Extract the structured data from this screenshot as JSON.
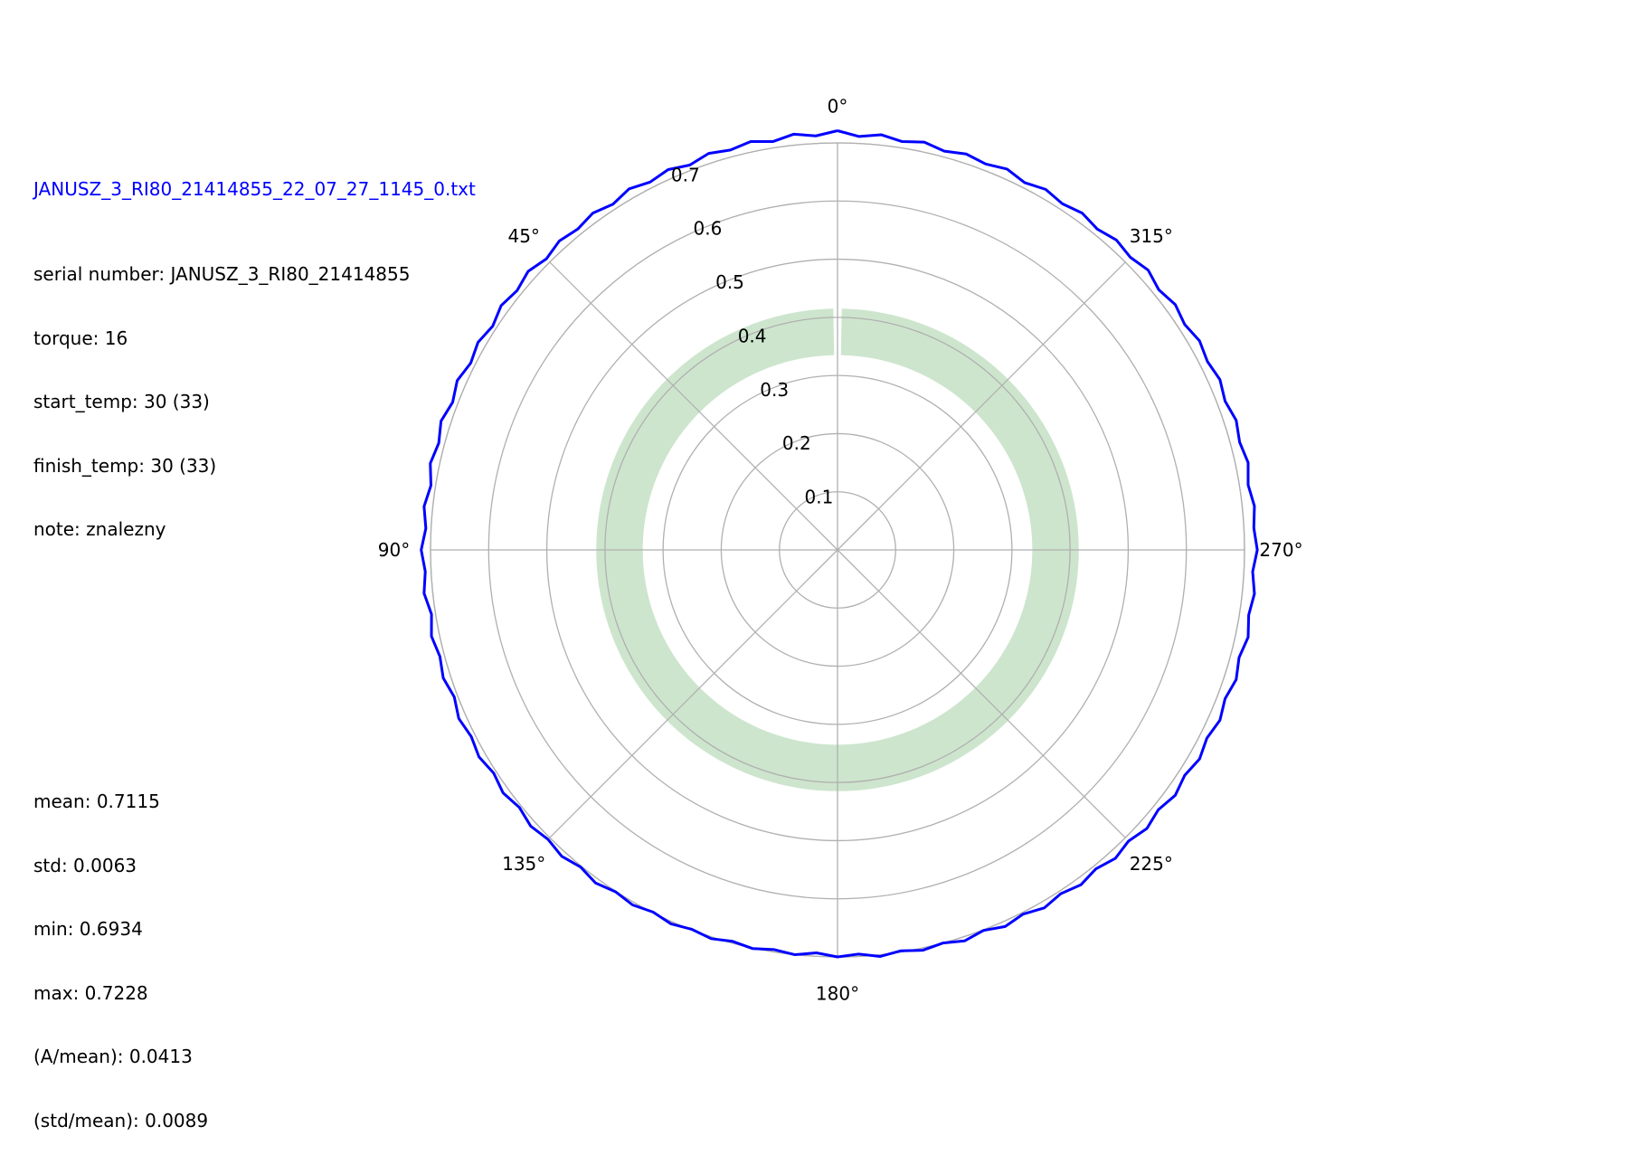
{
  "header": {
    "filename": "JANUSZ_3_RI80_21414855_22_07_27_1145_0.txt",
    "meta_lines": [
      "serial number: JANUSZ_3_RI80_21414855",
      "torque: 16",
      "start_temp: 30 (33)",
      "finish_temp: 30 (33)",
      "note: znalezny"
    ]
  },
  "stats": {
    "lines": [
      "mean: 0.7115",
      "std: 0.0063",
      "min: 0.6934",
      "max: 0.7228",
      "(A/mean): 0.0413",
      "(std/mean): 0.0089"
    ]
  },
  "chart_data": {
    "type": "line",
    "projection": "polar",
    "theta_direction": "counterclockwise",
    "theta_zero": "top",
    "angle_tick_labels": [
      "0°",
      "45°",
      "90°",
      "135°",
      "180°",
      "225°",
      "270°",
      "315°"
    ],
    "angle_ticks_deg": [
      0,
      45,
      90,
      135,
      180,
      225,
      270,
      315
    ],
    "radial_tick_labels": [
      "0.1",
      "0.2",
      "0.3",
      "0.4",
      "0.5",
      "0.6",
      "0.7"
    ],
    "radial_ticks": [
      0.1,
      0.2,
      0.3,
      0.4,
      0.5,
      0.6,
      0.7
    ],
    "rlim": [
      0,
      0.7
    ],
    "grid": true,
    "band": {
      "r_inner": 0.335,
      "r_outer": 0.415,
      "start_deg": 1,
      "end_deg": 359,
      "color": "#cde5cd"
    },
    "series_color": "#0000ff",
    "series": [
      {
        "theta_deg": [
          0,
          3,
          6,
          9,
          12,
          15,
          18,
          21,
          24,
          27,
          30,
          33,
          36,
          39,
          42,
          45,
          48,
          51,
          54,
          57,
          60,
          63,
          66,
          69,
          72,
          75,
          78,
          81,
          84,
          87,
          90,
          93,
          96,
          99,
          102,
          105,
          108,
          111,
          114,
          117,
          120,
          123,
          126,
          129,
          132,
          135,
          138,
          141,
          144,
          147,
          150,
          153,
          156,
          159,
          162,
          165,
          168,
          171,
          174,
          177,
          180,
          183,
          186,
          189,
          192,
          195,
          198,
          201,
          204,
          207,
          210,
          213,
          216,
          219,
          222,
          225,
          228,
          231,
          234,
          237,
          240,
          243,
          246,
          249,
          252,
          255,
          258,
          261,
          264,
          267,
          270,
          273,
          276,
          279,
          282,
          285,
          288,
          291,
          294,
          297,
          300,
          303,
          306,
          309,
          312,
          315,
          318,
          321,
          324,
          327,
          330,
          333,
          336,
          339,
          342,
          345,
          348,
          351,
          354,
          357,
          360
        ],
        "r": [
          0.721,
          0.713,
          0.719,
          0.711,
          0.718,
          0.712,
          0.717,
          0.709,
          0.716,
          0.71,
          0.717,
          0.709,
          0.716,
          0.71,
          0.715,
          0.708,
          0.716,
          0.709,
          0.715,
          0.707,
          0.714,
          0.708,
          0.716,
          0.709,
          0.717,
          0.71,
          0.716,
          0.708,
          0.715,
          0.709,
          0.716,
          0.71,
          0.715,
          0.707,
          0.714,
          0.708,
          0.713,
          0.706,
          0.713,
          0.707,
          0.712,
          0.705,
          0.711,
          0.704,
          0.71,
          0.704,
          0.709,
          0.702,
          0.708,
          0.701,
          0.705,
          0.699,
          0.704,
          0.699,
          0.703,
          0.697,
          0.701,
          0.696,
          0.7,
          0.694,
          0.7,
          0.696,
          0.703,
          0.698,
          0.704,
          0.7,
          0.707,
          0.701,
          0.709,
          0.703,
          0.711,
          0.705,
          0.712,
          0.706,
          0.714,
          0.708,
          0.716,
          0.71,
          0.718,
          0.712,
          0.719,
          0.713,
          0.72,
          0.714,
          0.721,
          0.715,
          0.722,
          0.716,
          0.721,
          0.715,
          0.722,
          0.717,
          0.721,
          0.715,
          0.722,
          0.716,
          0.721,
          0.714,
          0.72,
          0.714,
          0.719,
          0.712,
          0.718,
          0.711,
          0.719,
          0.712,
          0.717,
          0.71,
          0.716,
          0.71,
          0.716,
          0.709,
          0.717,
          0.711,
          0.716,
          0.71,
          0.717,
          0.711,
          0.718,
          0.712,
          0.721
        ]
      }
    ]
  }
}
